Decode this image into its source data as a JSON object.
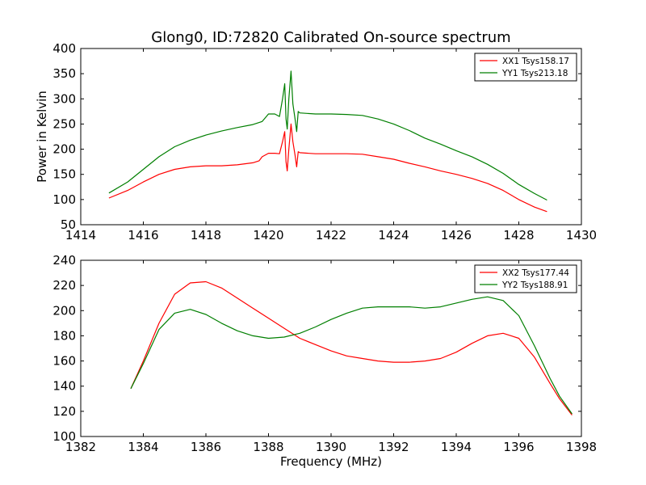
{
  "figure": {
    "title": "Glong0, ID:72820 Calibrated On-source spectrum"
  },
  "colors": {
    "red": "#ff0000",
    "green": "#007f00"
  },
  "chart_data": [
    {
      "type": "line",
      "title": "",
      "xlabel": "",
      "ylabel": "Power in Kelvin",
      "xlim": [
        1414,
        1430
      ],
      "ylim": [
        50,
        400
      ],
      "xticks": [
        "1414",
        "1416",
        "1418",
        "1420",
        "1422",
        "1424",
        "1426",
        "1428",
        "1430"
      ],
      "yticks": [
        "50",
        "100",
        "150",
        "200",
        "250",
        "300",
        "350",
        "400"
      ],
      "legend": "top-right",
      "series": [
        {
          "name": "XX1 Tsys158.17",
          "color": "#ff0000",
          "points": [
            [
              1414.9,
              103
            ],
            [
              1415.5,
              118
            ],
            [
              1416.0,
              135
            ],
            [
              1416.5,
              150
            ],
            [
              1417.0,
              160
            ],
            [
              1417.5,
              165
            ],
            [
              1418.0,
              167
            ],
            [
              1418.5,
              167
            ],
            [
              1419.0,
              169
            ],
            [
              1419.5,
              173
            ],
            [
              1419.7,
              177
            ],
            [
              1419.8,
              185
            ],
            [
              1420.0,
              192
            ],
            [
              1420.2,
              192
            ],
            [
              1420.35,
              191
            ],
            [
              1420.45,
              215
            ],
            [
              1420.52,
              235
            ],
            [
              1420.56,
              175
            ],
            [
              1420.6,
              157
            ],
            [
              1420.65,
              200
            ],
            [
              1420.72,
              250
            ],
            [
              1420.78,
              215
            ],
            [
              1420.85,
              188
            ],
            [
              1420.9,
              165
            ],
            [
              1420.95,
              195
            ],
            [
              1421.0,
              193
            ],
            [
              1421.5,
              191
            ],
            [
              1422.0,
              191
            ],
            [
              1422.5,
              191
            ],
            [
              1423.0,
              190
            ],
            [
              1423.5,
              185
            ],
            [
              1424.0,
              180
            ],
            [
              1424.5,
              172
            ],
            [
              1425.0,
              165
            ],
            [
              1425.5,
              157
            ],
            [
              1426.0,
              150
            ],
            [
              1426.5,
              142
            ],
            [
              1427.0,
              132
            ],
            [
              1427.5,
              118
            ],
            [
              1428.0,
              100
            ],
            [
              1428.5,
              85
            ],
            [
              1428.9,
              76
            ]
          ]
        },
        {
          "name": "YY1 Tsys213.18",
          "color": "#007f00",
          "points": [
            [
              1414.9,
              113
            ],
            [
              1415.5,
              135
            ],
            [
              1416.0,
              160
            ],
            [
              1416.5,
              185
            ],
            [
              1417.0,
              205
            ],
            [
              1417.5,
              218
            ],
            [
              1418.0,
              228
            ],
            [
              1418.5,
              236
            ],
            [
              1419.0,
              243
            ],
            [
              1419.5,
              249
            ],
            [
              1419.8,
              255
            ],
            [
              1420.0,
              270
            ],
            [
              1420.2,
              270
            ],
            [
              1420.35,
              265
            ],
            [
              1420.45,
              300
            ],
            [
              1420.52,
              330
            ],
            [
              1420.56,
              260
            ],
            [
              1420.6,
              240
            ],
            [
              1420.65,
              300
            ],
            [
              1420.72,
              355
            ],
            [
              1420.78,
              290
            ],
            [
              1420.85,
              260
            ],
            [
              1420.9,
              235
            ],
            [
              1420.95,
              275
            ],
            [
              1421.0,
              272
            ],
            [
              1421.5,
              270
            ],
            [
              1422.0,
              270
            ],
            [
              1422.5,
              269
            ],
            [
              1423.0,
              267
            ],
            [
              1423.5,
              260
            ],
            [
              1424.0,
              250
            ],
            [
              1424.5,
              237
            ],
            [
              1425.0,
              222
            ],
            [
              1425.5,
              210
            ],
            [
              1426.0,
              197
            ],
            [
              1426.5,
              185
            ],
            [
              1427.0,
              170
            ],
            [
              1427.5,
              152
            ],
            [
              1428.0,
              130
            ],
            [
              1428.5,
              112
            ],
            [
              1428.9,
              99
            ]
          ]
        }
      ]
    },
    {
      "type": "line",
      "title": "",
      "xlabel": "Frequency (MHz)",
      "ylabel": "",
      "xlim": [
        1382,
        1398
      ],
      "ylim": [
        100,
        240
      ],
      "xticks": [
        "1382",
        "1384",
        "1386",
        "1388",
        "1390",
        "1392",
        "1394",
        "1396",
        "1398"
      ],
      "yticks": [
        "100",
        "120",
        "140",
        "160",
        "180",
        "200",
        "220",
        "240"
      ],
      "legend": "top-right",
      "series": [
        {
          "name": "XX2 Tsys177.44",
          "color": "#ff0000",
          "points": [
            [
              1383.6,
              138
            ],
            [
              1384.0,
              160
            ],
            [
              1384.5,
              190
            ],
            [
              1385.0,
              213
            ],
            [
              1385.5,
              222
            ],
            [
              1386.0,
              223
            ],
            [
              1386.5,
              218
            ],
            [
              1387.0,
              210
            ],
            [
              1387.5,
              202
            ],
            [
              1388.0,
              194
            ],
            [
              1388.5,
              186
            ],
            [
              1389.0,
              178
            ],
            [
              1389.5,
              173
            ],
            [
              1390.0,
              168
            ],
            [
              1390.5,
              164
            ],
            [
              1391.0,
              162
            ],
            [
              1391.5,
              160
            ],
            [
              1392.0,
              159
            ],
            [
              1392.5,
              159
            ],
            [
              1393.0,
              160
            ],
            [
              1393.5,
              162
            ],
            [
              1394.0,
              167
            ],
            [
              1394.5,
              174
            ],
            [
              1395.0,
              180
            ],
            [
              1395.5,
              182
            ],
            [
              1396.0,
              178
            ],
            [
              1396.5,
              163
            ],
            [
              1397.0,
              142
            ],
            [
              1397.3,
              130
            ],
            [
              1397.7,
              117
            ]
          ]
        },
        {
          "name": "YY2 Tsys188.91",
          "color": "#007f00",
          "points": [
            [
              1383.6,
              138
            ],
            [
              1384.0,
              158
            ],
            [
              1384.5,
              185
            ],
            [
              1385.0,
              198
            ],
            [
              1385.5,
              201
            ],
            [
              1386.0,
              197
            ],
            [
              1386.5,
              190
            ],
            [
              1387.0,
              184
            ],
            [
              1387.5,
              180
            ],
            [
              1388.0,
              178
            ],
            [
              1388.5,
              179
            ],
            [
              1389.0,
              182
            ],
            [
              1389.5,
              187
            ],
            [
              1390.0,
              193
            ],
            [
              1390.5,
              198
            ],
            [
              1391.0,
              202
            ],
            [
              1391.5,
              203
            ],
            [
              1392.0,
              203
            ],
            [
              1392.5,
              203
            ],
            [
              1393.0,
              202
            ],
            [
              1393.5,
              203
            ],
            [
              1394.0,
              206
            ],
            [
              1394.5,
              209
            ],
            [
              1395.0,
              211
            ],
            [
              1395.5,
              208
            ],
            [
              1396.0,
              196
            ],
            [
              1396.5,
              172
            ],
            [
              1397.0,
              146
            ],
            [
              1397.3,
              132
            ],
            [
              1397.7,
              118
            ]
          ]
        }
      ]
    }
  ]
}
